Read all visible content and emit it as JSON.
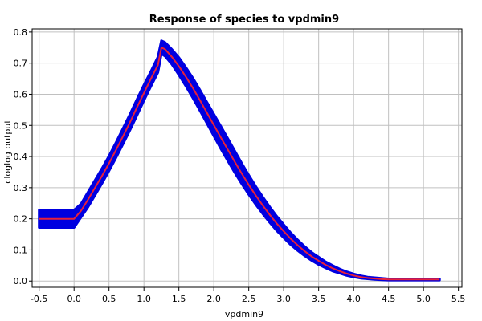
{
  "chart_data": {
    "type": "line",
    "title": "Response of species to vpdmin9",
    "xlabel": "vpdmin9",
    "ylabel": "cloglog output",
    "xlim": [
      -0.6,
      5.55
    ],
    "ylim": [
      -0.02,
      0.81
    ],
    "xticks": [
      -0.5,
      0.0,
      0.5,
      1.0,
      1.5,
      2.0,
      2.5,
      3.0,
      3.5,
      4.0,
      4.5,
      5.0,
      5.5
    ],
    "yticks": [
      0.0,
      0.1,
      0.2,
      0.3,
      0.4,
      0.5,
      0.6,
      0.7,
      0.8
    ],
    "grid": true,
    "colors": {
      "mean": "#e8203a",
      "band": "#0000e0"
    },
    "series": [
      {
        "x": [
          -0.5,
          0.0,
          0.1,
          0.2,
          0.3,
          0.4,
          0.5,
          0.6,
          0.7,
          0.8,
          0.9,
          1.0,
          1.1,
          1.2,
          1.25,
          1.3,
          1.4,
          1.5,
          1.6,
          1.7,
          1.8,
          1.9,
          2.0,
          2.1,
          2.2,
          2.3,
          2.4,
          2.5,
          2.6,
          2.7,
          2.8,
          2.9,
          3.0,
          3.1,
          3.2,
          3.3,
          3.4,
          3.5,
          3.6,
          3.7,
          3.8,
          3.9,
          4.0,
          4.1,
          4.2,
          4.3,
          4.4,
          4.5,
          4.6,
          4.7,
          4.8,
          4.9,
          5.0,
          5.1,
          5.23
        ],
        "values": [
          0.2,
          0.2,
          0.226,
          0.262,
          0.3,
          0.338,
          0.378,
          0.421,
          0.465,
          0.51,
          0.558,
          0.604,
          0.65,
          0.694,
          0.75,
          0.745,
          0.72,
          0.69,
          0.656,
          0.62,
          0.581,
          0.541,
          0.501,
          0.461,
          0.422,
          0.383,
          0.345,
          0.309,
          0.275,
          0.243,
          0.213,
          0.185,
          0.16,
          0.136,
          0.115,
          0.096,
          0.079,
          0.065,
          0.052,
          0.041,
          0.032,
          0.024,
          0.018,
          0.013,
          0.01,
          0.008,
          0.006,
          0.005,
          0.005,
          0.005,
          0.005,
          0.005,
          0.005,
          0.005,
          0.005
        ],
        "band_lower": [
          0.172,
          0.172,
          0.205,
          0.238,
          0.276,
          0.314,
          0.354,
          0.396,
          0.44,
          0.485,
          0.532,
          0.58,
          0.626,
          0.67,
          0.73,
          0.723,
          0.696,
          0.662,
          0.626,
          0.588,
          0.548,
          0.507,
          0.466,
          0.425,
          0.386,
          0.348,
          0.312,
          0.278,
          0.246,
          0.216,
          0.188,
          0.162,
          0.139,
          0.117,
          0.098,
          0.081,
          0.066,
          0.053,
          0.042,
          0.032,
          0.025,
          0.018,
          0.013,
          0.009,
          0.007,
          0.005,
          0.004,
          0.003,
          0.003,
          0.003,
          0.003,
          0.003,
          0.003,
          0.003,
          0.003
        ],
        "band_upper": [
          0.228,
          0.228,
          0.248,
          0.286,
          0.324,
          0.362,
          0.402,
          0.445,
          0.49,
          0.536,
          0.584,
          0.63,
          0.674,
          0.72,
          0.772,
          0.767,
          0.744,
          0.718,
          0.686,
          0.652,
          0.614,
          0.575,
          0.536,
          0.497,
          0.458,
          0.418,
          0.378,
          0.34,
          0.304,
          0.27,
          0.238,
          0.208,
          0.181,
          0.155,
          0.132,
          0.111,
          0.092,
          0.077,
          0.062,
          0.05,
          0.039,
          0.03,
          0.023,
          0.017,
          0.013,
          0.011,
          0.009,
          0.007,
          0.007,
          0.007,
          0.007,
          0.007,
          0.007,
          0.007,
          0.007
        ]
      }
    ]
  }
}
